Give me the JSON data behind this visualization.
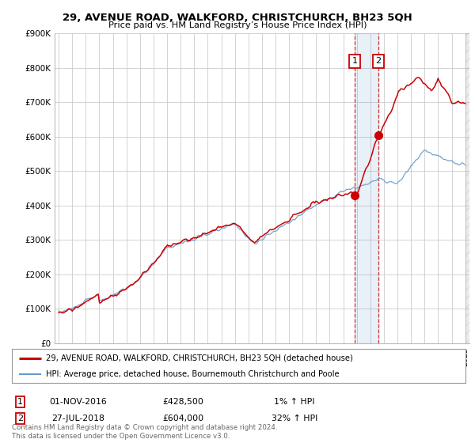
{
  "title": "29, AVENUE ROAD, WALKFORD, CHRISTCHURCH, BH23 5QH",
  "subtitle": "Price paid vs. HM Land Registry’s House Price Index (HPI)",
  "ylabel_ticks": [
    "£0",
    "£100K",
    "£200K",
    "£300K",
    "£400K",
    "£500K",
    "£600K",
    "£700K",
    "£800K",
    "£900K"
  ],
  "ylim": [
    0,
    900000
  ],
  "xlim_start": 1994.7,
  "xlim_end": 2025.3,
  "legend_line1": "29, AVENUE ROAD, WALKFORD, CHRISTCHURCH, BH23 5QH (detached house)",
  "legend_line2": "HPI: Average price, detached house, Bournemouth Christchurch and Poole",
  "transaction1_label": "1",
  "transaction1_date": "01-NOV-2016",
  "transaction1_price": "£428,500",
  "transaction1_hpi": "1% ↑ HPI",
  "transaction2_label": "2",
  "transaction2_date": "27-JUL-2018",
  "transaction2_price": "£604,000",
  "transaction2_hpi": "32% ↑ HPI",
  "footer": "Contains HM Land Registry data © Crown copyright and database right 2024.\nThis data is licensed under the Open Government Licence v3.0.",
  "line_color_red": "#cc0000",
  "line_color_blue": "#6699cc",
  "bg_color": "#ffffff",
  "grid_color": "#cccccc",
  "transaction1_x": 2016.833,
  "transaction1_y": 428500,
  "transaction2_x": 2018.583,
  "transaction2_y": 604000
}
